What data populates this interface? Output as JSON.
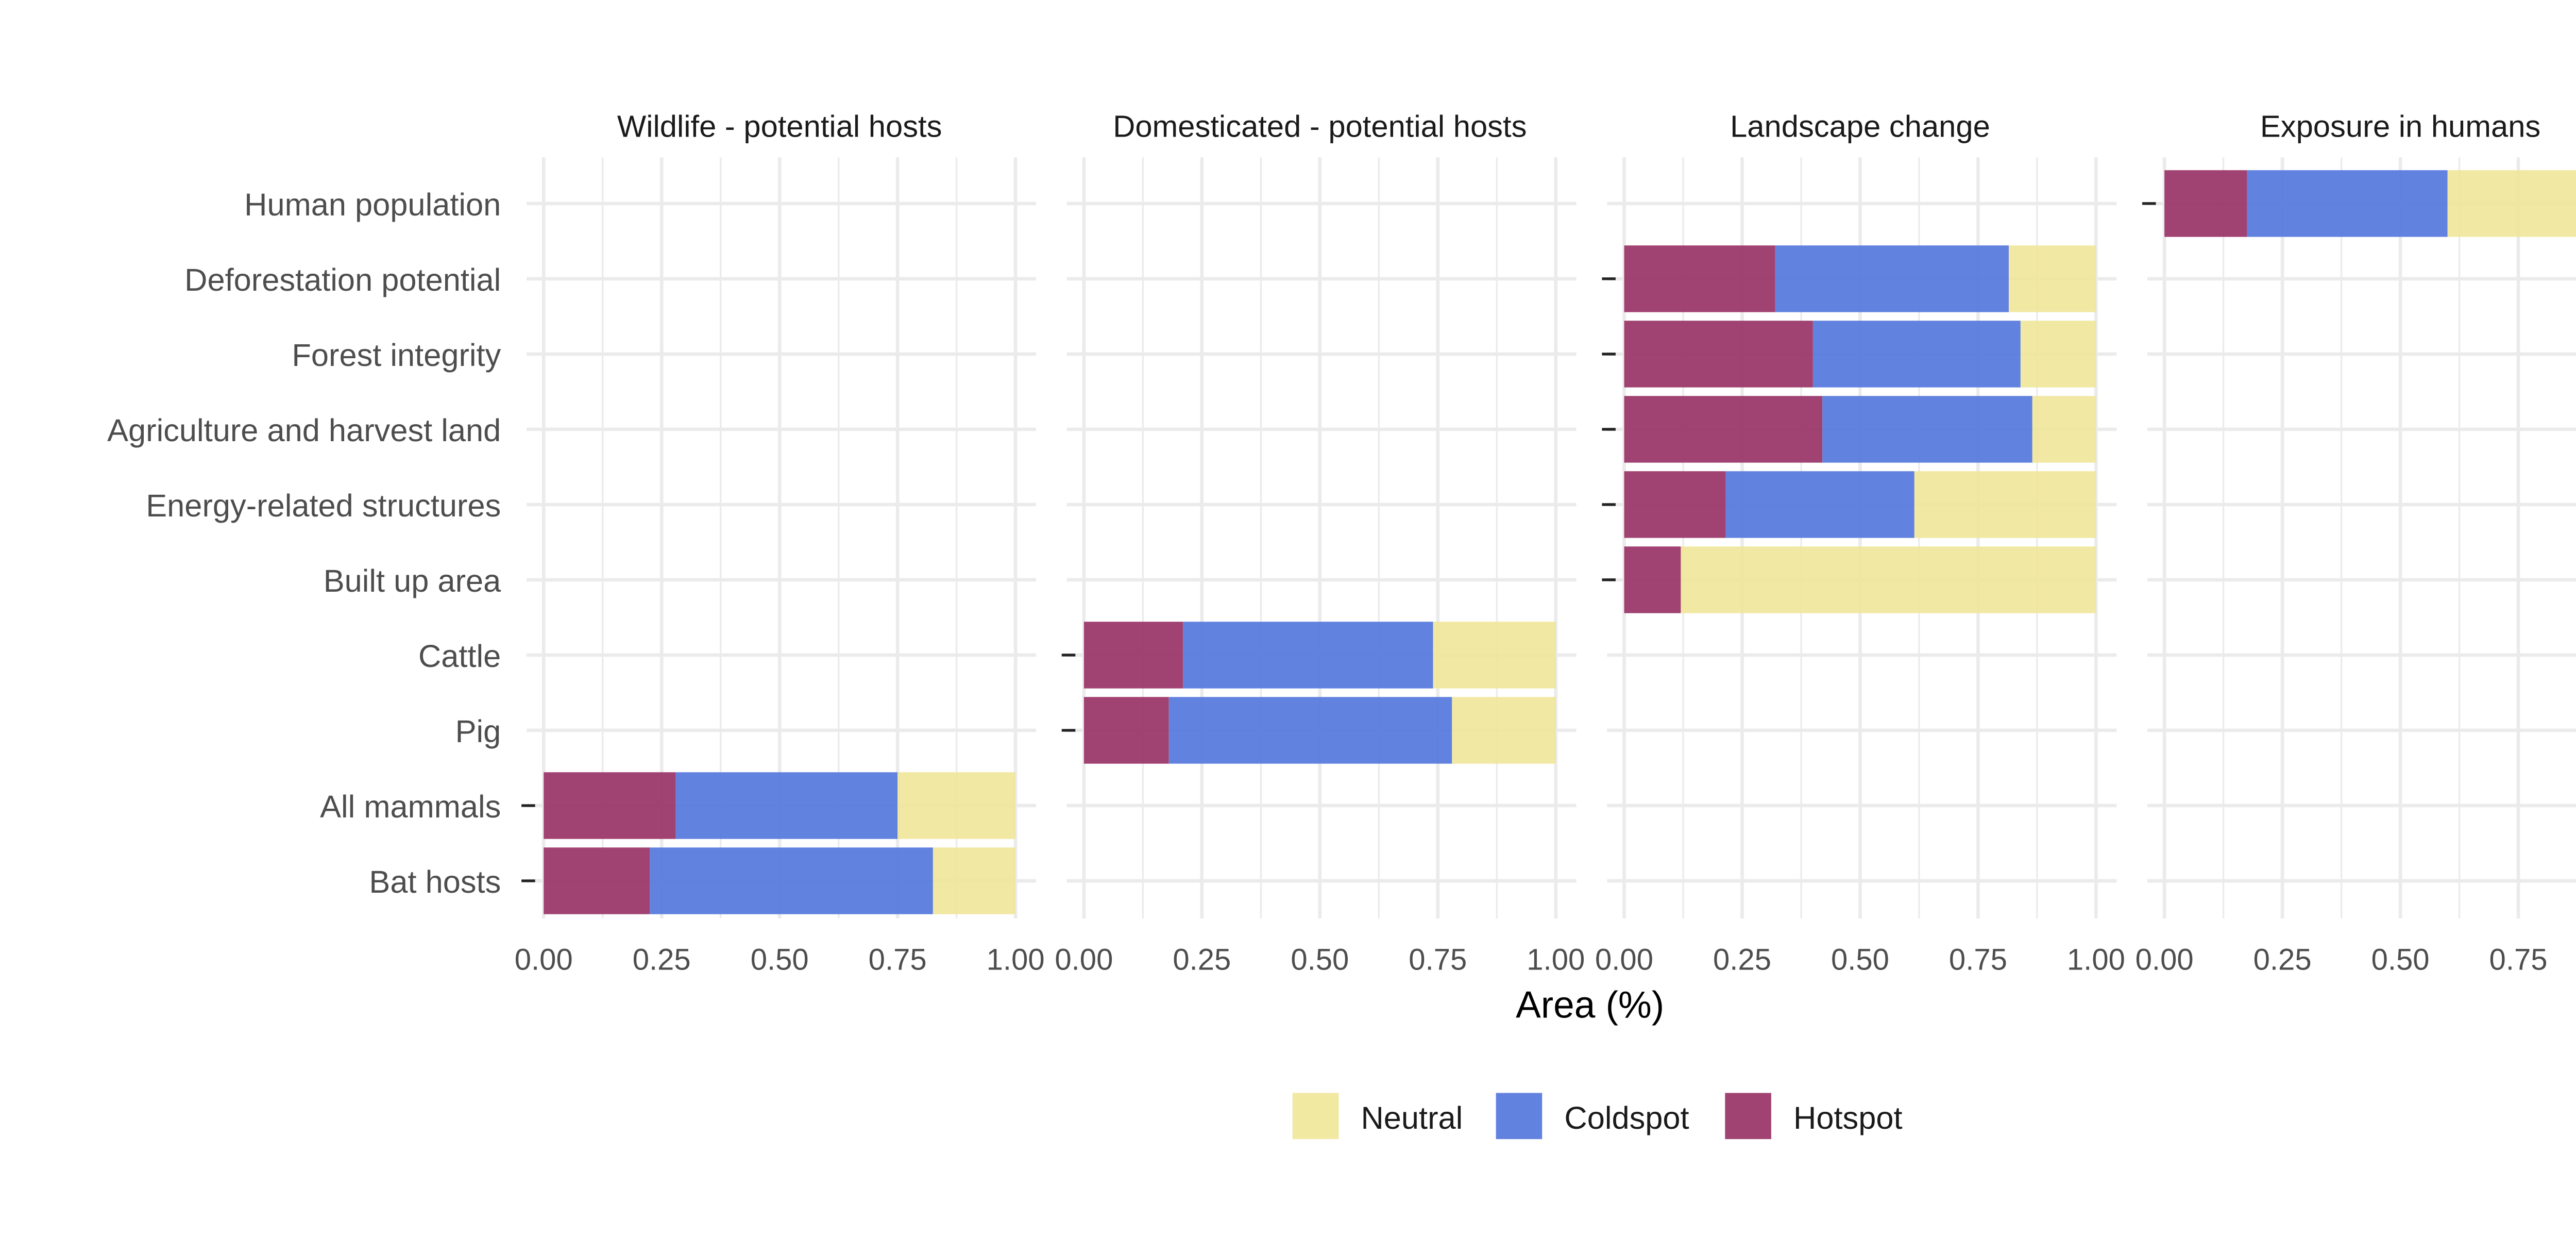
{
  "chart_data": {
    "type": "bar",
    "orientation": "horizontal",
    "stacked": true,
    "xlabel": "Area (%)",
    "ylabel": "",
    "xlim": [
      0,
      1
    ],
    "x_ticks": [
      "0.00",
      "0.25",
      "0.50",
      "0.75",
      "1.00"
    ],
    "grid": true,
    "legend_position": "bottom",
    "categories": [
      "Human population",
      "Deforestation potential",
      "Forest integrity",
      "Agriculture and harvest land",
      "Energy-related structures",
      "Built up area",
      "Cattle",
      "Pig",
      "All mammals",
      "Bat hosts"
    ],
    "series": [
      {
        "name": "Hotspot",
        "color": "#993366"
      },
      {
        "name": "Coldspot",
        "color": "#5577dd"
      },
      {
        "name": "Neutral",
        "color": "#f0e699"
      }
    ],
    "legend": [
      {
        "name": "Neutral",
        "color": "#f0e699"
      },
      {
        "name": "Coldspot",
        "color": "#5577dd"
      },
      {
        "name": "Hotspot",
        "color": "#993366"
      }
    ],
    "facets": [
      {
        "title": "Wildlife - potential hosts",
        "bars": [
          {
            "category": "All mammals",
            "Hotspot": 0.28,
            "Coldspot": 0.47,
            "Neutral": 0.25
          },
          {
            "category": "Bat hosts",
            "Hotspot": 0.225,
            "Coldspot": 0.6,
            "Neutral": 0.175
          }
        ]
      },
      {
        "title": "Domesticated - potential hosts",
        "bars": [
          {
            "category": "Cattle",
            "Hotspot": 0.21,
            "Coldspot": 0.53,
            "Neutral": 0.26
          },
          {
            "category": "Pig",
            "Hotspot": 0.18,
            "Coldspot": 0.6,
            "Neutral": 0.22
          }
        ]
      },
      {
        "title": "Landscape change",
        "bars": [
          {
            "category": "Deforestation potential",
            "Hotspot": 0.32,
            "Coldspot": 0.495,
            "Neutral": 0.185
          },
          {
            "category": "Forest integrity",
            "Hotspot": 0.4,
            "Coldspot": 0.44,
            "Neutral": 0.16
          },
          {
            "category": "Agriculture and harvest land",
            "Hotspot": 0.42,
            "Coldspot": 0.445,
            "Neutral": 0.135
          },
          {
            "category": "Energy-related structures",
            "Hotspot": 0.215,
            "Coldspot": 0.4,
            "Neutral": 0.385
          },
          {
            "category": "Built up area",
            "Hotspot": 0.12,
            "Coldspot": 0.0,
            "Neutral": 0.88
          }
        ]
      },
      {
        "title": "Exposure in humans",
        "bars": [
          {
            "category": "Human population",
            "Hotspot": 0.175,
            "Coldspot": 0.425,
            "Neutral": 0.4
          }
        ]
      }
    ]
  }
}
